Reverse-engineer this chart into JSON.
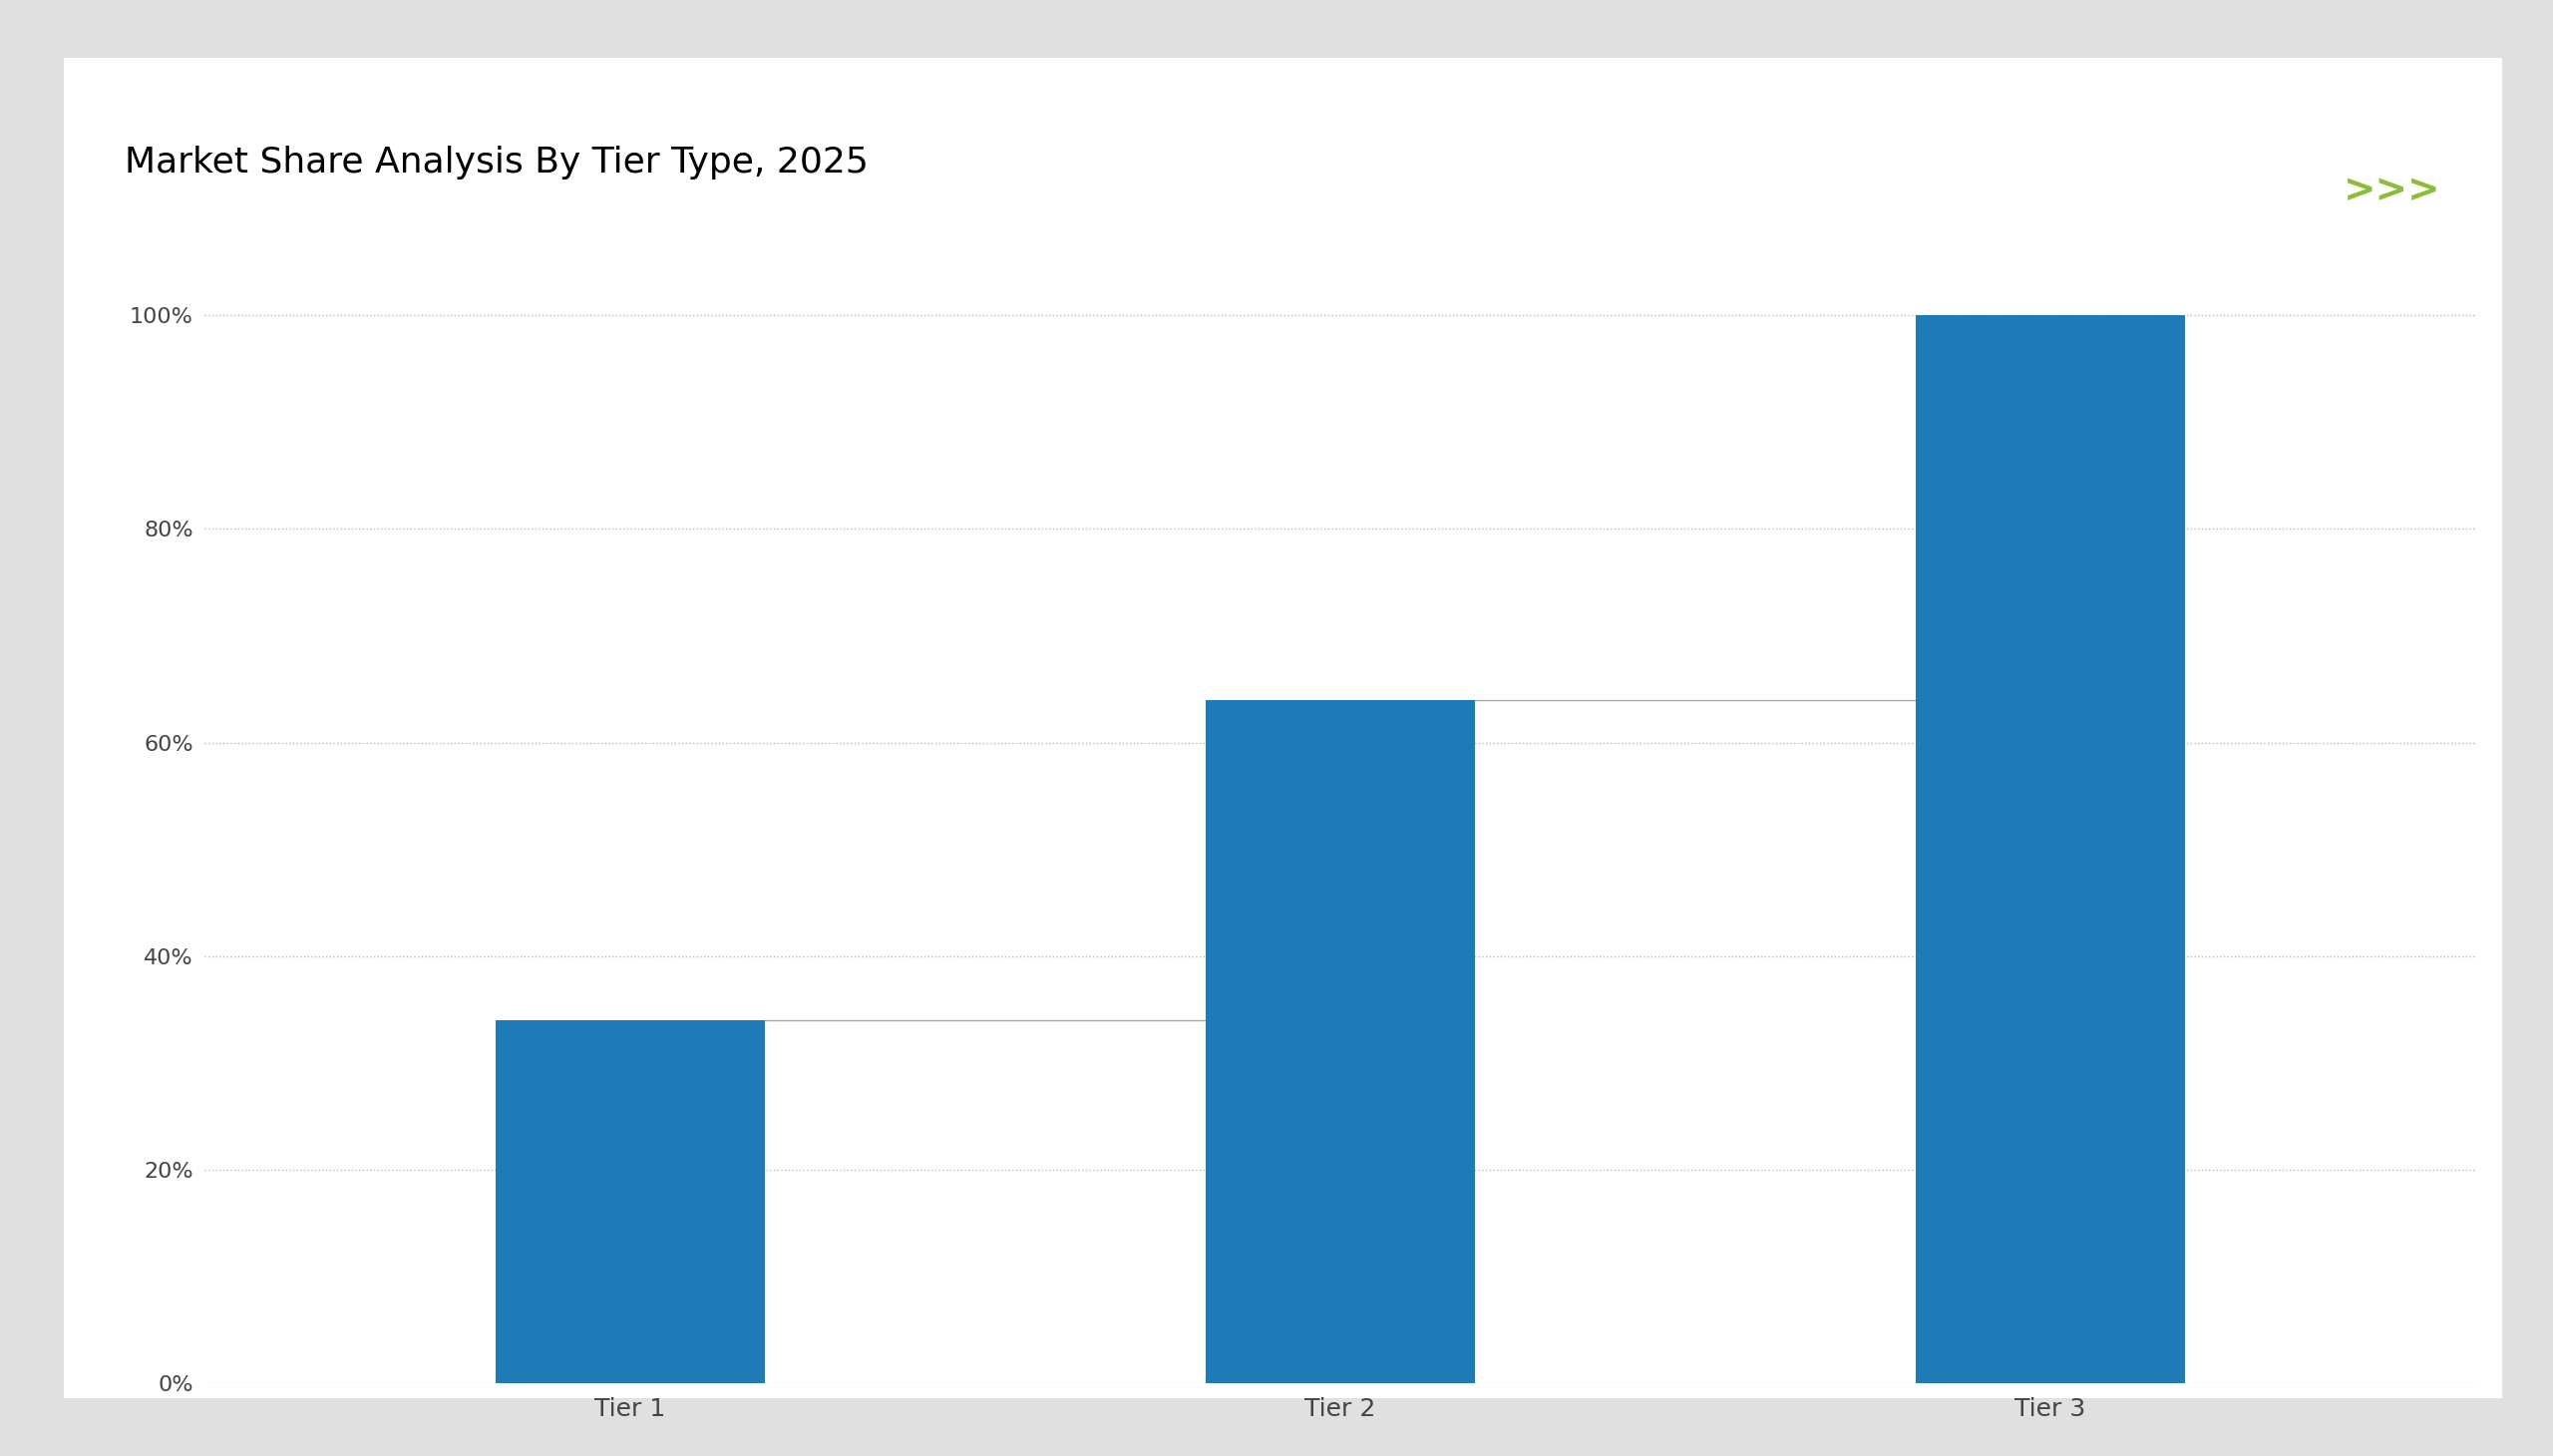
{
  "title": "Market Share Analysis By Tier Type, 2025",
  "categories": [
    "Tier 1",
    "Tier 2",
    "Tier 3"
  ],
  "values": [
    34,
    64,
    100
  ],
  "bar_color": "#1F7AB8",
  "background_color": "#E0E0E0",
  "chart_bg": "#FFFFFF",
  "green_line_color": "#8BBD3A",
  "connector_color": "#AAAAAA",
  "grid_color": "#AAAAAA",
  "title_fontsize": 26,
  "tick_fontsize": 16,
  "yticks": [
    0,
    20,
    40,
    60,
    80,
    100
  ],
  "bar_width": 0.38,
  "ylim": [
    0,
    105
  ],
  "chevron_color": "#8BBD3A",
  "chevron_text": ">>>",
  "chevron_fontsize": 28
}
